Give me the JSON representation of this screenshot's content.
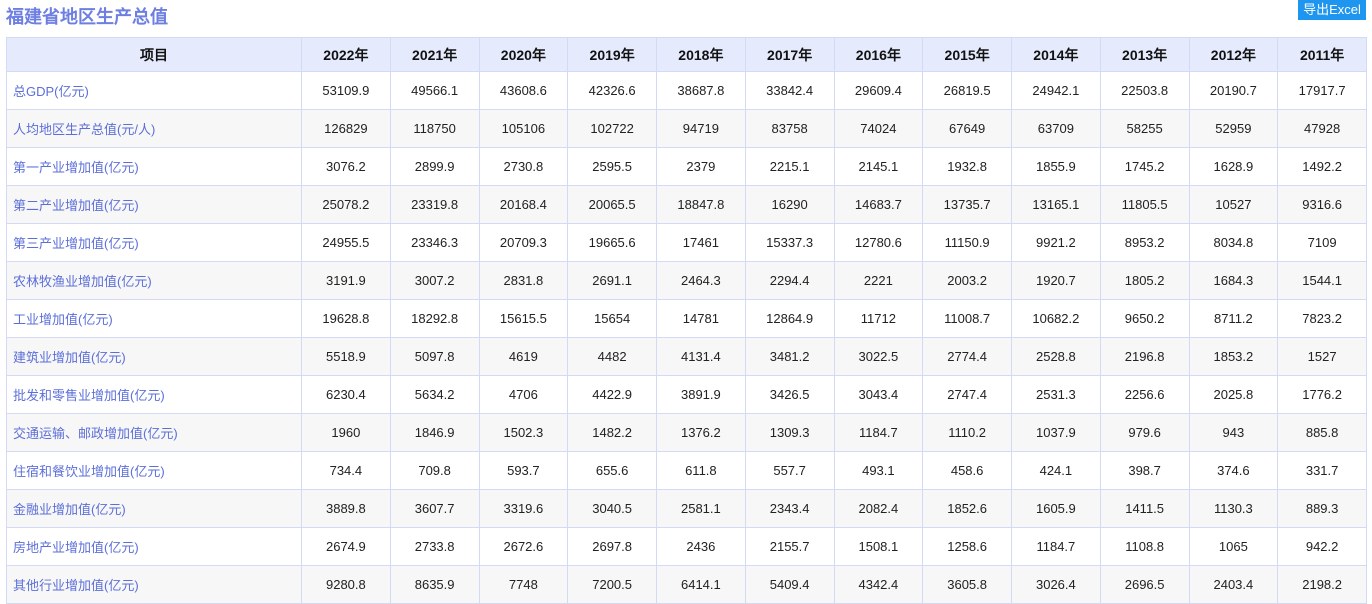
{
  "title": "福建省地区生产总值",
  "export_label": "导出Excel",
  "colors": {
    "title": "#6d7fe2",
    "export_bg": "#1e96f0",
    "header_bg": "#e5ebfd",
    "label_text": "#5c6fd8",
    "border": "#d3daf6"
  },
  "table": {
    "headers": [
      "项目",
      "2022年",
      "2021年",
      "2020年",
      "2019年",
      "2018年",
      "2017年",
      "2016年",
      "2015年",
      "2014年",
      "2013年",
      "2012年",
      "2011年"
    ],
    "rows": [
      {
        "label": "总GDP(亿元)",
        "values": [
          "53109.9",
          "49566.1",
          "43608.6",
          "42326.6",
          "38687.8",
          "33842.4",
          "29609.4",
          "26819.5",
          "24942.1",
          "22503.8",
          "20190.7",
          "17917.7"
        ]
      },
      {
        "label": "人均地区生产总值(元/人)",
        "values": [
          "126829",
          "118750",
          "105106",
          "102722",
          "94719",
          "83758",
          "74024",
          "67649",
          "63709",
          "58255",
          "52959",
          "47928"
        ]
      },
      {
        "label": "第一产业增加值(亿元)",
        "values": [
          "3076.2",
          "2899.9",
          "2730.8",
          "2595.5",
          "2379",
          "2215.1",
          "2145.1",
          "1932.8",
          "1855.9",
          "1745.2",
          "1628.9",
          "1492.2"
        ]
      },
      {
        "label": "第二产业增加值(亿元)",
        "values": [
          "25078.2",
          "23319.8",
          "20168.4",
          "20065.5",
          "18847.8",
          "16290",
          "14683.7",
          "13735.7",
          "13165.1",
          "11805.5",
          "10527",
          "9316.6"
        ]
      },
      {
        "label": "第三产业增加值(亿元)",
        "values": [
          "24955.5",
          "23346.3",
          "20709.3",
          "19665.6",
          "17461",
          "15337.3",
          "12780.6",
          "11150.9",
          "9921.2",
          "8953.2",
          "8034.8",
          "7109"
        ]
      },
      {
        "label": "农林牧渔业增加值(亿元)",
        "values": [
          "3191.9",
          "3007.2",
          "2831.8",
          "2691.1",
          "2464.3",
          "2294.4",
          "2221",
          "2003.2",
          "1920.7",
          "1805.2",
          "1684.3",
          "1544.1"
        ]
      },
      {
        "label": "工业增加值(亿元)",
        "values": [
          "19628.8",
          "18292.8",
          "15615.5",
          "15654",
          "14781",
          "12864.9",
          "11712",
          "11008.7",
          "10682.2",
          "9650.2",
          "8711.2",
          "7823.2"
        ]
      },
      {
        "label": "建筑业增加值(亿元)",
        "values": [
          "5518.9",
          "5097.8",
          "4619",
          "4482",
          "4131.4",
          "3481.2",
          "3022.5",
          "2774.4",
          "2528.8",
          "2196.8",
          "1853.2",
          "1527"
        ]
      },
      {
        "label": "批发和零售业增加值(亿元)",
        "values": [
          "6230.4",
          "5634.2",
          "4706",
          "4422.9",
          "3891.9",
          "3426.5",
          "3043.4",
          "2747.4",
          "2531.3",
          "2256.6",
          "2025.8",
          "1776.2"
        ]
      },
      {
        "label": "交通运输、邮政增加值(亿元)",
        "values": [
          "1960",
          "1846.9",
          "1502.3",
          "1482.2",
          "1376.2",
          "1309.3",
          "1184.7",
          "1110.2",
          "1037.9",
          "979.6",
          "943",
          "885.8"
        ]
      },
      {
        "label": "住宿和餐饮业增加值(亿元)",
        "values": [
          "734.4",
          "709.8",
          "593.7",
          "655.6",
          "611.8",
          "557.7",
          "493.1",
          "458.6",
          "424.1",
          "398.7",
          "374.6",
          "331.7"
        ]
      },
      {
        "label": "金融业增加值(亿元)",
        "values": [
          "3889.8",
          "3607.7",
          "3319.6",
          "3040.5",
          "2581.1",
          "2343.4",
          "2082.4",
          "1852.6",
          "1605.9",
          "1411.5",
          "1130.3",
          "889.3"
        ]
      },
      {
        "label": "房地产业增加值(亿元)",
        "values": [
          "2674.9",
          "2733.8",
          "2672.6",
          "2697.8",
          "2436",
          "2155.7",
          "1508.1",
          "1258.6",
          "1184.7",
          "1108.8",
          "1065",
          "942.2"
        ]
      },
      {
        "label": "其他行业增加值(亿元)",
        "values": [
          "9280.8",
          "8635.9",
          "7748",
          "7200.5",
          "6414.1",
          "5409.4",
          "4342.4",
          "3605.8",
          "3026.4",
          "2696.5",
          "2403.4",
          "2198.2"
        ]
      }
    ]
  }
}
